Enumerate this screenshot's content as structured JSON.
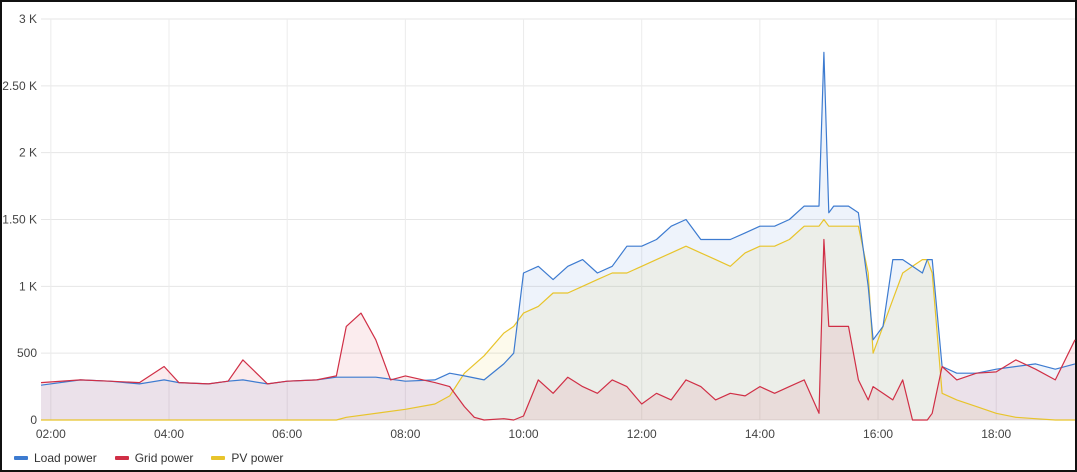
{
  "chart_data": {
    "type": "line",
    "title": "",
    "xlabel": "",
    "ylabel": "",
    "x_ticks": [
      "02:00",
      "04:00",
      "06:00",
      "08:00",
      "10:00",
      "12:00",
      "14:00",
      "16:00",
      "18:00"
    ],
    "y_ticks": [
      "0",
      "500",
      "1 K",
      "1.50 K",
      "2 K",
      "2.50 K",
      "3 K"
    ],
    "ylim": [
      0,
      3000
    ],
    "xlim": [
      "01:50",
      "19:20"
    ],
    "grid": true,
    "legend_position": "bottom-left",
    "series": [
      {
        "name": "Load power",
        "color": "#3d7bd0",
        "fill": true,
        "x": [
          "01:50",
          "02:30",
          "03:00",
          "03:30",
          "03:55",
          "04:10",
          "04:40",
          "05:00",
          "05:15",
          "05:40",
          "06:00",
          "06:30",
          "06:50",
          "07:30",
          "08:00",
          "08:30",
          "08:45",
          "09:00",
          "09:20",
          "09:40",
          "09:50",
          "10:00",
          "10:15",
          "10:30",
          "10:45",
          "11:00",
          "11:15",
          "11:30",
          "11:45",
          "12:00",
          "12:15",
          "12:30",
          "12:45",
          "13:00",
          "13:15",
          "13:30",
          "13:45",
          "14:00",
          "14:15",
          "14:30",
          "14:45",
          "15:00",
          "15:05",
          "15:10",
          "15:15",
          "15:20",
          "15:30",
          "15:40",
          "15:50",
          "15:55",
          "16:05",
          "16:15",
          "16:25",
          "16:35",
          "16:45",
          "16:50",
          "16:55",
          "17:05",
          "17:20",
          "17:40",
          "18:00",
          "18:20",
          "18:40",
          "19:00",
          "19:20"
        ],
        "values": [
          260,
          300,
          290,
          270,
          300,
          280,
          270,
          290,
          300,
          270,
          290,
          300,
          320,
          320,
          290,
          300,
          350,
          330,
          300,
          420,
          500,
          1100,
          1150,
          1050,
          1150,
          1200,
          1100,
          1150,
          1300,
          1300,
          1350,
          1450,
          1500,
          1350,
          1350,
          1350,
          1400,
          1450,
          1450,
          1500,
          1600,
          1600,
          2750,
          1550,
          1600,
          1600,
          1600,
          1550,
          1000,
          600,
          700,
          1200,
          1200,
          1150,
          1100,
          1200,
          1200,
          400,
          350,
          350,
          380,
          400,
          420,
          380,
          420
        ]
      },
      {
        "name": "Grid power",
        "color": "#d02f46",
        "fill": true,
        "x": [
          "01:50",
          "02:30",
          "03:00",
          "03:30",
          "03:55",
          "04:10",
          "04:40",
          "05:00",
          "05:15",
          "05:40",
          "06:00",
          "06:30",
          "06:50",
          "07:00",
          "07:15",
          "07:30",
          "07:45",
          "08:00",
          "08:30",
          "08:45",
          "09:00",
          "09:10",
          "09:20",
          "09:40",
          "09:50",
          "10:00",
          "10:15",
          "10:30",
          "10:45",
          "11:00",
          "11:15",
          "11:30",
          "11:45",
          "12:00",
          "12:15",
          "12:30",
          "12:45",
          "13:00",
          "13:15",
          "13:30",
          "13:45",
          "14:00",
          "14:15",
          "14:30",
          "14:45",
          "15:00",
          "15:05",
          "15:10",
          "15:15",
          "15:20",
          "15:30",
          "15:40",
          "15:50",
          "15:55",
          "16:05",
          "16:15",
          "16:25",
          "16:35",
          "16:45",
          "16:50",
          "16:55",
          "17:05",
          "17:20",
          "17:40",
          "18:00",
          "18:20",
          "18:40",
          "19:00",
          "19:20"
        ],
        "values": [
          280,
          300,
          290,
          280,
          400,
          280,
          270,
          290,
          450,
          270,
          290,
          300,
          330,
          700,
          800,
          600,
          300,
          330,
          280,
          250,
          100,
          20,
          0,
          10,
          0,
          30,
          300,
          200,
          320,
          250,
          200,
          300,
          250,
          120,
          200,
          150,
          300,
          250,
          150,
          200,
          180,
          250,
          200,
          250,
          300,
          50,
          1350,
          700,
          700,
          700,
          700,
          300,
          150,
          250,
          200,
          150,
          300,
          0,
          0,
          0,
          50,
          400,
          300,
          350,
          360,
          450,
          380,
          300,
          600
        ]
      },
      {
        "name": "PV power",
        "color": "#e8c42b",
        "fill": true,
        "x": [
          "01:50",
          "06:50",
          "07:00",
          "08:00",
          "08:30",
          "08:45",
          "09:00",
          "09:20",
          "09:40",
          "09:50",
          "10:00",
          "10:15",
          "10:30",
          "10:45",
          "11:00",
          "11:15",
          "11:30",
          "11:45",
          "12:00",
          "12:15",
          "12:30",
          "12:45",
          "13:00",
          "13:15",
          "13:30",
          "13:45",
          "14:00",
          "14:15",
          "14:30",
          "14:45",
          "15:00",
          "15:05",
          "15:10",
          "15:15",
          "15:20",
          "15:30",
          "15:40",
          "15:50",
          "15:55",
          "16:05",
          "16:15",
          "16:25",
          "16:35",
          "16:45",
          "16:50",
          "16:55",
          "17:05",
          "17:20",
          "17:40",
          "18:00",
          "18:20",
          "18:40",
          "19:00",
          "19:20"
        ],
        "values": [
          0,
          0,
          20,
          80,
          120,
          180,
          350,
          480,
          650,
          700,
          800,
          850,
          950,
          950,
          1000,
          1050,
          1100,
          1100,
          1150,
          1200,
          1250,
          1300,
          1250,
          1200,
          1150,
          1250,
          1300,
          1300,
          1350,
          1450,
          1450,
          1500,
          1450,
          1450,
          1450,
          1450,
          1450,
          1100,
          500,
          700,
          900,
          1100,
          1150,
          1200,
          1200,
          1100,
          200,
          150,
          100,
          50,
          20,
          10,
          0,
          0
        ]
      }
    ]
  }
}
